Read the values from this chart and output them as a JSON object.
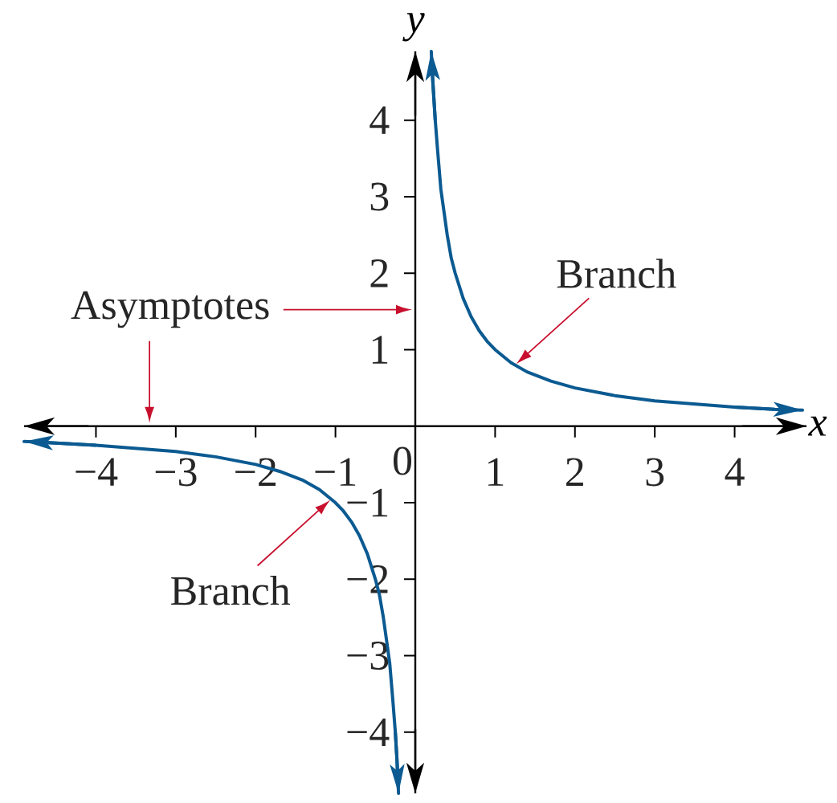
{
  "chart_data": {
    "type": "line",
    "xlabel": "x",
    "ylabel": "y",
    "xlim": [
      -4.9,
      4.9
    ],
    "ylim": [
      -4.8,
      4.9
    ],
    "xticks": [
      {
        "value": -4,
        "label": "−4"
      },
      {
        "value": -3,
        "label": "−3"
      },
      {
        "value": -2,
        "label": "−2"
      },
      {
        "value": -1,
        "label": "−1"
      },
      {
        "value": 0,
        "label": "0"
      },
      1,
      2,
      3,
      4
    ],
    "yticks": [
      {
        "value": -4,
        "label": "−4"
      },
      {
        "value": -3,
        "label": "−3"
      },
      {
        "value": -2,
        "label": "−2"
      },
      {
        "value": -1,
        "label": "−1"
      },
      1,
      2,
      3,
      4
    ],
    "series": [
      {
        "color": "#0b5a91",
        "x": [
          0.2,
          0.22,
          0.25,
          0.28,
          0.32,
          0.36,
          0.4,
          0.45,
          0.5,
          0.6,
          0.7,
          0.8,
          0.9,
          1,
          1.2,
          1.4,
          1.7,
          2,
          2.5,
          3,
          3.5,
          4,
          4.5,
          4.85
        ],
        "values": [
          4.9,
          4.5,
          4,
          3.6,
          3.1,
          2.8,
          2.5,
          2.2,
          2,
          1.67,
          1.43,
          1.25,
          1.11,
          1,
          0.83,
          0.71,
          0.59,
          0.5,
          0.4,
          0.33,
          0.29,
          0.25,
          0.22,
          0.21
        ]
      },
      {
        "color": "#0b5a91",
        "x": [
          -4.9,
          -4.5,
          -4,
          -3.5,
          -3,
          -2.5,
          -2,
          -1.7,
          -1.4,
          -1.2,
          -1,
          -0.9,
          -0.8,
          -0.7,
          -0.6,
          -0.5,
          -0.45,
          -0.4,
          -0.36,
          -0.32,
          -0.28,
          -0.25,
          -0.23,
          -0.21
        ],
        "values": [
          -0.2,
          -0.22,
          -0.25,
          -0.29,
          -0.33,
          -0.4,
          -0.5,
          -0.59,
          -0.71,
          -0.83,
          -1,
          -1.11,
          -1.25,
          -1.43,
          -1.67,
          -2,
          -2.2,
          -2.5,
          -2.8,
          -3.1,
          -3.6,
          -4,
          -4.35,
          -4.8
        ]
      }
    ],
    "annotations": [
      "Asymptotes",
      {
        "text": "Branch",
        "x": 1.25,
        "y": 0.8
      },
      {
        "text": "Branch",
        "x": -1.05,
        "y": -0.95
      }
    ]
  }
}
